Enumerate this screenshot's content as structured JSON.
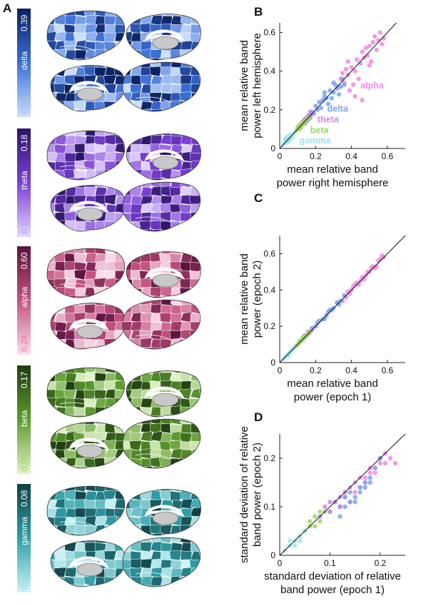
{
  "panel_letters": {
    "a": "A",
    "b": "B",
    "c": "C",
    "d": "D"
  },
  "bands": [
    {
      "name": "delta",
      "max": "0.39",
      "min": "0.16",
      "dark": "#0b1f5e",
      "mid": "#3a6fd8",
      "light": "#cfe0fb"
    },
    {
      "name": "theta",
      "max": "0.18",
      "min": "0.12",
      "dark": "#2a1566",
      "mid": "#7b3fd6",
      "light": "#e4d8fb"
    },
    {
      "name": "alpha",
      "max": "0.60",
      "min": "0.24",
      "dark": "#5c1240",
      "mid": "#c4507f",
      "light": "#fbe3ee"
    },
    {
      "name": "beta",
      "max": "0.17",
      "min": "0.09",
      "dark": "#1f3d10",
      "mid": "#5c9c2c",
      "light": "#e2f3c9"
    },
    {
      "name": "gamma",
      "max": "0.08",
      "min": "0.02",
      "dark": "#113f44",
      "mid": "#2c9fa8",
      "light": "#d2f4f6"
    }
  ],
  "series_colors": {
    "delta": "#7aa4ee",
    "theta": "#c98ae8",
    "alpha": "#ee8be0",
    "beta": "#9fd66a",
    "gamma": "#9ee3ea"
  },
  "chart_data": [
    {
      "type": "scatter",
      "panel": "B",
      "xlabel": [
        "mean relative band",
        "power right hemisphere"
      ],
      "ylabel": [
        "mean relative band",
        "power left hemisphere"
      ],
      "xlim": [
        0,
        0.7
      ],
      "ylim": [
        0,
        0.65
      ],
      "xticks": [
        "0",
        "0.2",
        "0.4",
        "0.6"
      ],
      "yticks": [
        "0",
        "0.2",
        "0.4",
        "0.6"
      ],
      "identity_line": true,
      "series": [
        {
          "name": "alpha",
          "x": [
            0.34,
            0.36,
            0.38,
            0.4,
            0.42,
            0.43,
            0.45,
            0.46,
            0.47,
            0.48,
            0.5,
            0.52,
            0.53,
            0.55,
            0.56,
            0.57,
            0.58,
            0.44,
            0.41,
            0.39,
            0.37,
            0.35,
            0.49,
            0.51,
            0.54,
            0.42,
            0.46,
            0.5,
            0.38,
            0.33
          ],
          "y": [
            0.36,
            0.34,
            0.38,
            0.42,
            0.4,
            0.46,
            0.44,
            0.5,
            0.47,
            0.52,
            0.53,
            0.55,
            0.58,
            0.56,
            0.6,
            0.54,
            0.57,
            0.36,
            0.33,
            0.3,
            0.41,
            0.39,
            0.48,
            0.45,
            0.51,
            0.27,
            0.25,
            0.43,
            0.45,
            0.32
          ]
        },
        {
          "name": "delta",
          "x": [
            0.14,
            0.16,
            0.18,
            0.2,
            0.22,
            0.24,
            0.25,
            0.26,
            0.28,
            0.3,
            0.31,
            0.32,
            0.34,
            0.35,
            0.23,
            0.21,
            0.27,
            0.29,
            0.33,
            0.19,
            0.17,
            0.25,
            0.3,
            0.36
          ],
          "y": [
            0.15,
            0.17,
            0.19,
            0.22,
            0.24,
            0.25,
            0.27,
            0.26,
            0.3,
            0.29,
            0.33,
            0.31,
            0.32,
            0.36,
            0.21,
            0.2,
            0.23,
            0.26,
            0.28,
            0.18,
            0.16,
            0.29,
            0.34,
            0.33
          ]
        },
        {
          "name": "theta",
          "x": [
            0.12,
            0.13,
            0.14,
            0.15,
            0.16,
            0.17,
            0.18,
            0.14,
            0.15,
            0.16,
            0.13,
            0.17
          ],
          "y": [
            0.12,
            0.14,
            0.13,
            0.16,
            0.15,
            0.17,
            0.18,
            0.15,
            0.14,
            0.16,
            0.13,
            0.19
          ]
        },
        {
          "name": "beta",
          "x": [
            0.09,
            0.1,
            0.11,
            0.12,
            0.13,
            0.14,
            0.15,
            0.16,
            0.1,
            0.12,
            0.14,
            0.11
          ],
          "y": [
            0.09,
            0.1,
            0.12,
            0.11,
            0.13,
            0.14,
            0.15,
            0.16,
            0.11,
            0.13,
            0.13,
            0.1
          ]
        },
        {
          "name": "gamma",
          "x": [
            0.02,
            0.03,
            0.04,
            0.05,
            0.06,
            0.07,
            0.08,
            0.03,
            0.05,
            0.06,
            0.04
          ],
          "y": [
            0.02,
            0.04,
            0.03,
            0.05,
            0.07,
            0.06,
            0.08,
            0.05,
            0.04,
            0.05,
            0.06
          ]
        }
      ],
      "annotations": [
        "alpha",
        "delta",
        "theta",
        "beta",
        "gamma"
      ]
    },
    {
      "type": "scatter",
      "panel": "C",
      "xlabel": [
        "mean relative band",
        "power (epoch 1)"
      ],
      "ylabel": [
        "mean relative band",
        "power (epoch 2)"
      ],
      "xlim": [
        0,
        0.7
      ],
      "ylim": [
        0,
        0.7
      ],
      "xticks": [
        "0",
        "0.2",
        "0.4",
        "0.6"
      ],
      "yticks": [
        "0",
        "0.2",
        "0.4",
        "0.6"
      ],
      "identity_line": true,
      "series": [
        {
          "name": "alpha",
          "x": [
            0.32,
            0.35,
            0.38,
            0.4,
            0.42,
            0.44,
            0.46,
            0.48,
            0.5,
            0.52,
            0.54,
            0.56,
            0.58,
            0.43,
            0.47,
            0.51,
            0.55,
            0.37,
            0.41,
            0.45,
            0.49,
            0.53,
            0.57,
            0.39
          ],
          "y": [
            0.33,
            0.34,
            0.39,
            0.4,
            0.43,
            0.43,
            0.47,
            0.48,
            0.5,
            0.53,
            0.53,
            0.57,
            0.58,
            0.44,
            0.46,
            0.52,
            0.56,
            0.36,
            0.42,
            0.45,
            0.5,
            0.52,
            0.59,
            0.38
          ]
        },
        {
          "name": "delta",
          "x": [
            0.16,
            0.18,
            0.2,
            0.22,
            0.24,
            0.26,
            0.28,
            0.3,
            0.32,
            0.34,
            0.36,
            0.25,
            0.29,
            0.33,
            0.21,
            0.27
          ],
          "y": [
            0.16,
            0.19,
            0.2,
            0.23,
            0.24,
            0.26,
            0.29,
            0.3,
            0.33,
            0.34,
            0.37,
            0.24,
            0.29,
            0.32,
            0.22,
            0.28
          ]
        },
        {
          "name": "theta",
          "x": [
            0.12,
            0.13,
            0.14,
            0.15,
            0.16,
            0.17,
            0.18,
            0.14,
            0.16
          ],
          "y": [
            0.12,
            0.13,
            0.15,
            0.15,
            0.17,
            0.17,
            0.18,
            0.14,
            0.16
          ]
        },
        {
          "name": "beta",
          "x": [
            0.09,
            0.1,
            0.11,
            0.12,
            0.13,
            0.14,
            0.15,
            0.16,
            0.17,
            0.11,
            0.13
          ],
          "y": [
            0.09,
            0.1,
            0.11,
            0.12,
            0.14,
            0.14,
            0.15,
            0.16,
            0.17,
            0.12,
            0.13
          ]
        },
        {
          "name": "gamma",
          "x": [
            0.02,
            0.03,
            0.04,
            0.05,
            0.06,
            0.07,
            0.08,
            0.05
          ],
          "y": [
            0.02,
            0.03,
            0.04,
            0.05,
            0.06,
            0.07,
            0.08,
            0.04
          ]
        }
      ]
    },
    {
      "type": "scatter",
      "panel": "D",
      "xlabel": [
        "standard deviation of relative",
        "band power (epoch 1)"
      ],
      "ylabel": [
        "standard deviation of relative",
        "band power (epoch 2)"
      ],
      "xlim": [
        0,
        0.25
      ],
      "ylim": [
        0,
        0.25
      ],
      "xticks": [
        "0",
        "0.1",
        "0.2"
      ],
      "yticks": [
        "0",
        "0.1",
        "0.2"
      ],
      "identity_line": true,
      "series": [
        {
          "name": "alpha",
          "x": [
            0.13,
            0.14,
            0.15,
            0.16,
            0.17,
            0.18,
            0.19,
            0.2,
            0.21,
            0.22,
            0.15,
            0.17,
            0.19,
            0.16,
            0.18,
            0.2,
            0.14,
            0.21,
            0.12,
            0.23
          ],
          "y": [
            0.12,
            0.14,
            0.15,
            0.16,
            0.16,
            0.18,
            0.17,
            0.2,
            0.19,
            0.2,
            0.13,
            0.15,
            0.18,
            0.14,
            0.17,
            0.19,
            0.11,
            0.21,
            0.1,
            0.19
          ]
        },
        {
          "name": "delta",
          "x": [
            0.1,
            0.11,
            0.12,
            0.13,
            0.14,
            0.15,
            0.16,
            0.17,
            0.18,
            0.19,
            0.2,
            0.12,
            0.14,
            0.16,
            0.18,
            0.13,
            0.15,
            0.17
          ],
          "y": [
            0.09,
            0.11,
            0.1,
            0.12,
            0.13,
            0.12,
            0.14,
            0.15,
            0.16,
            0.18,
            0.2,
            0.08,
            0.11,
            0.13,
            0.15,
            0.1,
            0.11,
            0.14
          ]
        },
        {
          "name": "theta",
          "x": [
            0.08,
            0.09,
            0.1,
            0.11,
            0.12,
            0.13,
            0.1,
            0.12
          ],
          "y": [
            0.08,
            0.1,
            0.09,
            0.11,
            0.12,
            0.13,
            0.11,
            0.1
          ]
        },
        {
          "name": "beta",
          "x": [
            0.05,
            0.06,
            0.07,
            0.08,
            0.09,
            0.06,
            0.07,
            0.08
          ],
          "y": [
            0.05,
            0.06,
            0.08,
            0.07,
            0.09,
            0.07,
            0.06,
            0.09
          ]
        },
        {
          "name": "gamma",
          "x": [
            0.01,
            0.02,
            0.03,
            0.04,
            0.05,
            0.03,
            0.04,
            0.02
          ],
          "y": [
            0.01,
            0.02,
            0.03,
            0.04,
            0.05,
            0.02,
            0.03,
            0.03
          ]
        }
      ]
    }
  ]
}
